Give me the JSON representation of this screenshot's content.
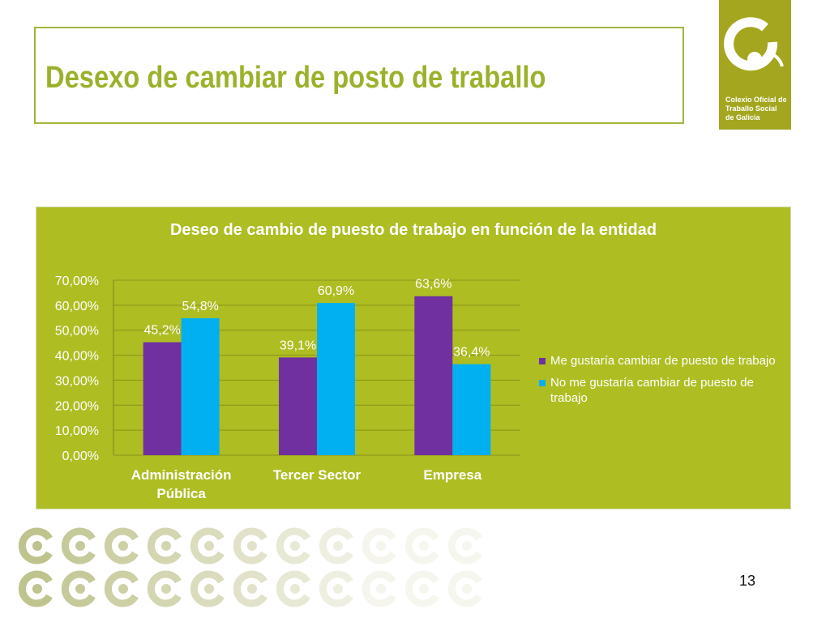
{
  "slide": {
    "title": "Desexo de cambiar de posto de traballo",
    "page_number": "13"
  },
  "logo": {
    "lines": [
      "Colexio Oficial de",
      "Traballo Social",
      "de Galicia"
    ]
  },
  "colors": {
    "accent_green": "#9cb12b",
    "panel_green": "#aebd22",
    "logo_green": "#a3a61e",
    "series_1": "#7030a0",
    "series_2": "#00b0f0"
  },
  "chart_data": {
    "type": "bar",
    "title": "Deseo de cambio de puesto de trabajo en función de la entidad",
    "categories": [
      [
        "Administración",
        "Pública"
      ],
      [
        "Tercer Sector"
      ],
      [
        "Empresa"
      ]
    ],
    "series": [
      {
        "name": "Me gustaría cambiar de puesto de trabajo",
        "values": [
          45.2,
          39.1,
          63.6
        ],
        "labels": [
          "45,2%",
          "39,1%",
          "63,6%"
        ],
        "color": "#7030a0"
      },
      {
        "name": "No me gustaría cambiar de puesto de trabajo",
        "values": [
          54.8,
          60.9,
          36.4
        ],
        "labels": [
          "54,8%",
          "60,9%",
          "36,4%"
        ],
        "color": "#00b0f0"
      }
    ],
    "ylim": [
      0,
      70
    ],
    "yticks": [
      0,
      10,
      20,
      30,
      40,
      50,
      60,
      70
    ],
    "ytick_labels": [
      "0,00%",
      "10,00%",
      "20,00%",
      "30,00%",
      "40,00%",
      "50,00%",
      "60,00%",
      "70,00%"
    ],
    "grid": true,
    "legend": "right"
  }
}
